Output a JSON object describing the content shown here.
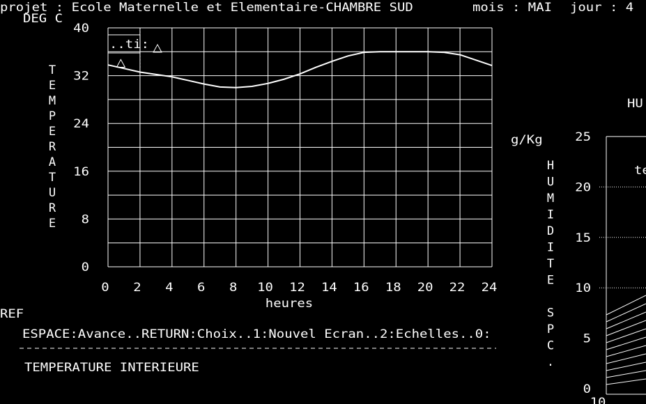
{
  "header": {
    "project": "projet : Ecole Maternelle et Elementaire-CHAMBRE SUD",
    "month": "mois : MAI",
    "day": "jour : 4"
  },
  "chart_data": [
    {
      "type": "line",
      "y_unit": "DEG C",
      "y_title": "TEMPERATURE",
      "x_label": "heures",
      "xlim": [
        0,
        24
      ],
      "xticks": [
        0,
        2,
        4,
        6,
        8,
        10,
        12,
        14,
        16,
        18,
        20,
        22,
        24
      ],
      "ylim": [
        0,
        40
      ],
      "yticks": [
        0,
        8,
        16,
        24,
        32,
        40
      ],
      "ygrid": [
        0,
        4,
        8,
        12,
        16,
        20,
        24,
        28,
        32,
        36,
        40
      ],
      "grid": true,
      "series": [
        {
          "color": "#ffffff",
          "x": [
            0,
            1,
            2,
            3,
            4,
            5,
            6,
            7,
            8,
            9,
            10,
            11,
            12,
            13,
            14,
            15,
            16,
            17,
            18,
            19,
            20,
            21,
            22,
            23,
            24
          ],
          "values": [
            33.8,
            33.2,
            32.6,
            32.2,
            31.8,
            31.2,
            30.6,
            30.1,
            30.0,
            30.2,
            30.7,
            31.4,
            32.3,
            33.4,
            34.4,
            35.3,
            35.9,
            36.0,
            36.0,
            36.0,
            36.0,
            35.9,
            35.5,
            34.6,
            33.7
          ]
        },
        {
          "name": "..ti:",
          "marker": "triangle",
          "color": "#ffffff",
          "x": [
            0.8
          ],
          "values": [
            34
          ]
        }
      ]
    },
    {
      "type": "line",
      "title": "HU",
      "y_unit": "g/Kg",
      "y_title": "HUMIDITE SPC.",
      "annotation": "te",
      "xlim": [
        10,
        40
      ],
      "xticks": [
        10
      ],
      "ylim": [
        0,
        25
      ],
      "yticks": [
        0,
        5,
        10,
        15,
        20,
        25
      ],
      "ygrid": [
        10,
        15,
        20
      ]
    }
  ],
  "footer": {
    "ref": "REF",
    "commands": "ESPACE:Avance..RETURN:Choix..1:Nouvel Ecran..2:Echelles..0:",
    "caption": "TEMPERATURE INTERIEURE"
  }
}
